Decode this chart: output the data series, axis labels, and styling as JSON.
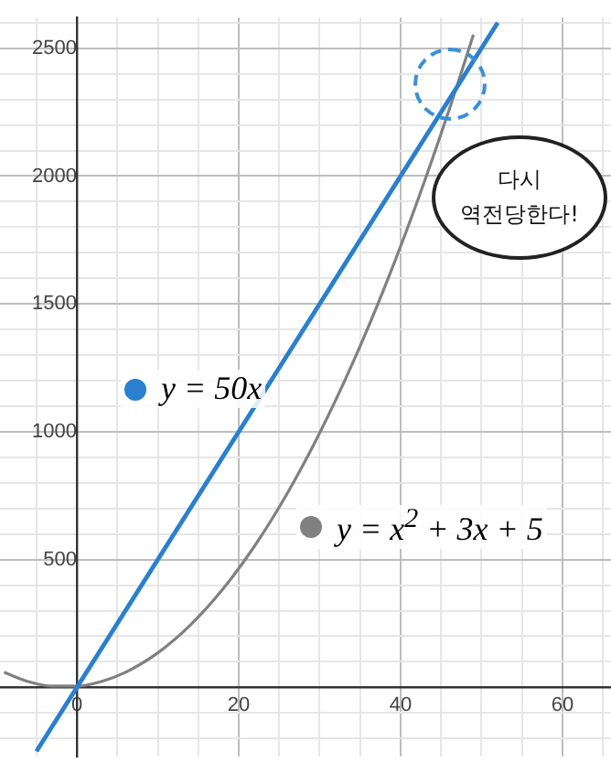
{
  "chart_data": {
    "type": "line",
    "series": [
      {
        "name": "y = 50x",
        "color": "#2a7fcf",
        "x": [
          -5,
          52
        ],
        "values": [
          -250,
          2600
        ]
      },
      {
        "name": "y = x$^{2}$ + 3x + 5",
        "color": "#808080",
        "x": [
          -9,
          -6,
          -3,
          0,
          3,
          6,
          10,
          14,
          18,
          22,
          26,
          30,
          34,
          38,
          42,
          46,
          49
        ],
        "values": [
          59,
          23,
          5,
          5,
          23,
          59,
          135,
          243,
          383,
          555,
          759,
          995,
          1263,
          1563,
          1895,
          2259,
          2553
        ]
      }
    ],
    "xlim": [
      -9.5,
      66
    ],
    "ylim": [
      -270,
      2620
    ],
    "xticks": [
      {
        "value": -5,
        "label": null
      },
      0,
      {
        "value": 5,
        "label": null
      },
      {
        "value": 10,
        "label": null
      },
      {
        "value": 15,
        "label": null
      },
      20,
      {
        "value": 25,
        "label": null
      },
      {
        "value": 30,
        "label": null
      },
      {
        "value": 35,
        "label": null
      },
      40,
      {
        "value": 45,
        "label": null
      },
      {
        "value": 50,
        "label": null
      },
      {
        "value": 55,
        "label": null
      },
      60,
      {
        "value": 65,
        "label": null
      }
    ],
    "yticks": [
      {
        "value": -200,
        "label": null
      },
      {
        "value": -100,
        "label": null
      },
      {
        "value": 0,
        "label": null
      },
      {
        "value": 100,
        "label": null
      },
      {
        "value": 200,
        "label": null
      },
      {
        "value": 300,
        "label": null
      },
      {
        "value": 400,
        "label": null
      },
      500,
      {
        "value": 600,
        "label": null
      },
      {
        "value": 700,
        "label": null
      },
      {
        "value": 800,
        "label": null
      },
      {
        "value": 900,
        "label": null
      },
      1000,
      {
        "value": 1100,
        "label": null
      },
      {
        "value": 1200,
        "label": null
      },
      {
        "value": 1300,
        "label": null
      },
      {
        "value": 1400,
        "label": null
      },
      1500,
      {
        "value": 1600,
        "label": null
      },
      {
        "value": 1700,
        "label": null
      },
      {
        "value": 1800,
        "label": null
      },
      {
        "value": 1900,
        "label": null
      },
      2000,
      {
        "value": 2100,
        "label": null
      },
      {
        "value": 2200,
        "label": null
      },
      {
        "value": 2300,
        "label": null
      },
      {
        "value": 2400,
        "label": null
      },
      2500,
      {
        "value": 2600,
        "label": null
      }
    ],
    "grid": true,
    "marker": "none",
    "line_style": "solid",
    "legend": "left",
    "annotations": [
      "다시\n역전당한다!"
    ]
  }
}
